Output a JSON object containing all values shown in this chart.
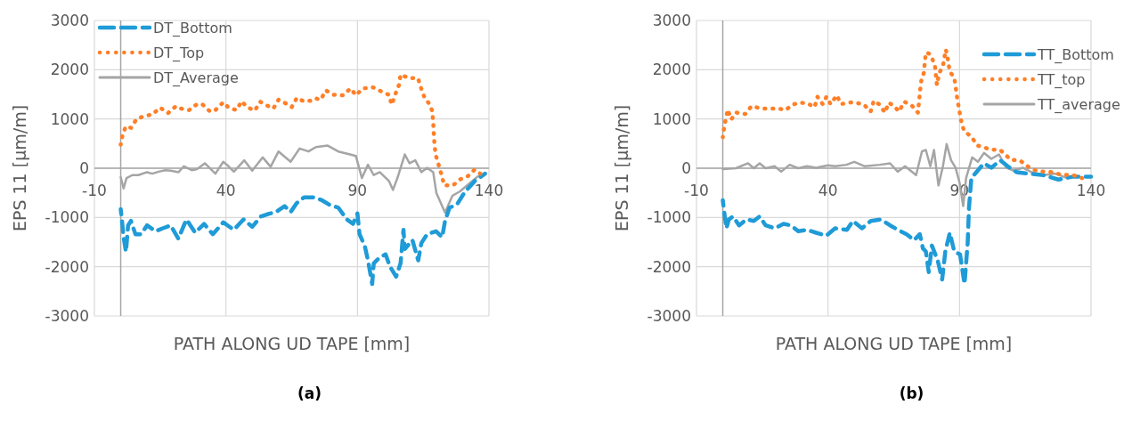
{
  "chart_data": [
    {
      "type": "line",
      "xlabel": "PATH ALONG UD TAPE [mm]",
      "ylabel": "EPS 11 [μm/m]",
      "xlim": [
        -10,
        140
      ],
      "xticks": [
        -10,
        40,
        90,
        140
      ],
      "ylim": [
        -3000,
        3000
      ],
      "yticks": [
        -3000,
        -2000,
        -1000,
        0,
        1000,
        2000,
        3000
      ],
      "grid": true,
      "legend": "top left",
      "annotations": [
        "(a)"
      ],
      "series": [
        {
          "name": "DT_Bottom",
          "color": "#1f9bd7",
          "line_style": "dashed",
          "x": [
            0,
            0.5,
            1.1,
            2,
            2.8,
            3.9,
            5.6,
            7.8,
            10,
            13.3,
            16,
            19,
            21.9,
            25,
            28.3,
            31.7,
            35,
            39,
            43,
            46.7,
            50,
            53.3,
            56.7,
            59,
            62.3,
            64.6,
            66.9,
            69.7,
            73.6,
            76.5,
            79.3,
            82.7,
            86,
            88.3,
            90,
            90.8,
            92.8,
            94,
            95.6,
            96.2,
            98.5,
            100.7,
            102.4,
            104.7,
            106.4,
            107.5,
            108,
            110.9,
            113.1,
            114.3,
            116.5,
            119.9,
            122.2,
            123.3,
            125,
            127.8,
            130.6,
            134.6,
            138.5
          ],
          "values": [
            -830,
            -1070,
            -1400,
            -1700,
            -1160,
            -1070,
            -1340,
            -1340,
            -1160,
            -1280,
            -1220,
            -1160,
            -1430,
            -1040,
            -1310,
            -1130,
            -1340,
            -1100,
            -1250,
            -1040,
            -1190,
            -980,
            -920,
            -890,
            -770,
            -890,
            -710,
            -590,
            -590,
            -650,
            -740,
            -800,
            -1040,
            -1130,
            -920,
            -1340,
            -1580,
            -1870,
            -2350,
            -1930,
            -1810,
            -1750,
            -2000,
            -2200,
            -1930,
            -1250,
            -1640,
            -1460,
            -1870,
            -1520,
            -1340,
            -1280,
            -1400,
            -1070,
            -800,
            -740,
            -500,
            -260,
            -110
          ]
        },
        {
          "name": "DT_Top",
          "color": "#ff7f27",
          "line_style": "dotted",
          "x": [
            0,
            0.8,
            2,
            4,
            6,
            9,
            12,
            15,
            18,
            21,
            23,
            26,
            29,
            31,
            34,
            36,
            39,
            41,
            44,
            46,
            48,
            51,
            53,
            55,
            58,
            60,
            63,
            65,
            67,
            69.5,
            72.5,
            74,
            76,
            78,
            81,
            84.5,
            87.4,
            89.4,
            92,
            96,
            99,
            102,
            103,
            104.3,
            105.8,
            106.4,
            109.5,
            113,
            114.3,
            115.6,
            117,
            118.4,
            118.8,
            119,
            119.3,
            119.7,
            120.8,
            122,
            123,
            126.3,
            128.9,
            132,
            134.5,
            136.7
          ],
          "values": [
            480,
            700,
            850,
            820,
            1000,
            1060,
            1090,
            1230,
            1120,
            1260,
            1210,
            1180,
            1300,
            1300,
            1150,
            1180,
            1340,
            1230,
            1180,
            1360,
            1240,
            1170,
            1350,
            1290,
            1210,
            1390,
            1310,
            1240,
            1430,
            1360,
            1370,
            1420,
            1390,
            1580,
            1490,
            1480,
            1620,
            1480,
            1620,
            1640,
            1560,
            1490,
            1290,
            1490,
            1690,
            1900,
            1830,
            1830,
            1610,
            1420,
            1330,
            1170,
            940,
            720,
            490,
            280,
            80,
            -140,
            -350,
            -350,
            -230,
            -160,
            -30,
            -110
          ]
        },
        {
          "name": "DT_Average",
          "color": "#a5a5a5",
          "line_style": "solid",
          "x": [
            0,
            1.1,
            2.2,
            4.4,
            6.7,
            10,
            12,
            14.4,
            17,
            19,
            22,
            24,
            27,
            29,
            32,
            36,
            39,
            41,
            43,
            47,
            50,
            54,
            57,
            60,
            64.6,
            68,
            71.4,
            74.2,
            78.7,
            82.7,
            87.2,
            89.4,
            91.7,
            94,
            96.2,
            98.5,
            102,
            103.5,
            105.2,
            108,
            109.8,
            112,
            114.3,
            116.5,
            118.8,
            120,
            123.3,
            126.1,
            129,
            132.3,
            135.7,
            138.5
          ],
          "values": [
            -180,
            -410,
            -200,
            -140,
            -140,
            -80,
            -110,
            -70,
            -40,
            -50,
            -80,
            40,
            -40,
            -20,
            100,
            -110,
            130,
            40,
            -70,
            160,
            -50,
            220,
            30,
            340,
            130,
            400,
            340,
            430,
            460,
            340,
            280,
            250,
            -200,
            70,
            -140,
            -80,
            -260,
            -440,
            -200,
            280,
            100,
            160,
            -80,
            10,
            -80,
            -500,
            -900,
            -560,
            -470,
            -320,
            -170,
            -110
          ]
        }
      ]
    },
    {
      "type": "line",
      "xlabel": "PATH ALONG UD TAPE [mm]",
      "ylabel": "EPS 11 [μm/m]",
      "xlim": [
        -10,
        140
      ],
      "xticks": [
        -10,
        40,
        90,
        140
      ],
      "ylim": [
        -3000,
        3000
      ],
      "yticks": [
        -3000,
        -2000,
        -1000,
        0,
        1000,
        2000,
        3000
      ],
      "grid": true,
      "legend": "top right",
      "annotations": [
        "(b)"
      ],
      "series": [
        {
          "name": "TT_Bottom",
          "color": "#1f9bd7",
          "line_style": "dashed",
          "x": [
            0,
            0.6,
            1.4,
            2.3,
            3.9,
            6.2,
            9,
            11.8,
            14,
            16.3,
            19.7,
            23.1,
            25.9,
            28.7,
            32,
            35.5,
            39.4,
            42.7,
            47.2,
            49.5,
            52.9,
            56.3,
            60.2,
            63.6,
            66.5,
            69.9,
            72.7,
            74.9,
            76.1,
            77.2,
            78.3,
            79.5,
            81.7,
            83.4,
            84.6,
            86.3,
            88,
            90.2,
            91.9,
            93.1,
            93.6,
            94.5,
            96.4,
            99.3,
            102.1,
            105.5,
            108.3,
            111.7,
            116.2,
            121.9,
            127.6,
            133.2,
            140
          ],
          "values": [
            -650,
            -920,
            -1220,
            -1040,
            -980,
            -1160,
            -1040,
            -1070,
            -980,
            -1160,
            -1220,
            -1130,
            -1160,
            -1280,
            -1250,
            -1310,
            -1370,
            -1220,
            -1250,
            -1070,
            -1220,
            -1070,
            -1040,
            -1160,
            -1250,
            -1340,
            -1460,
            -1340,
            -1630,
            -1690,
            -2110,
            -1570,
            -1870,
            -2260,
            -1690,
            -1310,
            -1690,
            -1750,
            -2350,
            -1520,
            -800,
            -200,
            -80,
            100,
            10,
            160,
            40,
            -80,
            -110,
            -140,
            -230,
            -170,
            -170
          ]
        },
        {
          "name": "TT_top",
          "color": "#ff7f27",
          "line_style": "dotted",
          "x": [
            0,
            0.6,
            1.4,
            1.9,
            3.2,
            5,
            8.5,
            10.9,
            14.9,
            18.4,
            21.4,
            23.9,
            26.5,
            29,
            32,
            34.9,
            36,
            38,
            39.4,
            41,
            43.3,
            45,
            47.2,
            50,
            53.7,
            56.2,
            57.4,
            59.4,
            61.7,
            63,
            65,
            67,
            69,
            71.9,
            74.2,
            75,
            75.5,
            76.4,
            77.2,
            78.7,
            80.6,
            81.4,
            82.3,
            83.7,
            84.8,
            85.5,
            86.3,
            88,
            88.5,
            89.1,
            90.6,
            91.7,
            94.5,
            96.8,
            99,
            101.5,
            105.5,
            109.5,
            112.9,
            117.4,
            120.8,
            124.2,
            128.7,
            133.2,
            136.6
          ],
          "values": [
            630,
            850,
            1070,
            1190,
            990,
            1130,
            1100,
            1260,
            1210,
            1210,
            1210,
            1180,
            1290,
            1330,
            1320,
            1240,
            1450,
            1300,
            1450,
            1300,
            1480,
            1300,
            1330,
            1340,
            1290,
            1150,
            1370,
            1300,
            1130,
            1330,
            1270,
            1150,
            1350,
            1270,
            1130,
            1570,
            1780,
            1930,
            2350,
            2320,
            2110,
            1690,
            1930,
            2080,
            2410,
            2230,
            1960,
            1840,
            1660,
            1420,
            970,
            760,
            640,
            460,
            430,
            380,
            370,
            170,
            160,
            -20,
            -70,
            -70,
            -130,
            -140,
            -200
          ]
        },
        {
          "name": "TT_average",
          "color": "#a5a5a5",
          "line_style": "solid",
          "x": [
            0,
            5,
            9.6,
            11.8,
            14,
            16.3,
            19.7,
            22.2,
            25.4,
            28.7,
            32,
            35.5,
            40,
            42.7,
            47,
            50,
            54,
            59.7,
            63.6,
            66.5,
            69.3,
            73.5,
            75.7,
            77.2,
            78.9,
            80.3,
            82,
            83.7,
            85.1,
            86.8,
            88.5,
            90,
            91.4,
            92.5,
            94.8,
            97,
            99.3,
            102.1,
            105,
            107.8,
            110.6,
            114,
            117.4,
            121.9,
            126.4,
            131
          ],
          "values": [
            -20,
            0,
            100,
            0,
            100,
            0,
            40,
            -70,
            70,
            0,
            40,
            10,
            60,
            40,
            70,
            130,
            40,
            70,
            100,
            -70,
            40,
            -140,
            340,
            370,
            40,
            370,
            -350,
            40,
            490,
            160,
            10,
            -290,
            -770,
            -200,
            220,
            130,
            310,
            190,
            280,
            10,
            -50,
            10,
            -80,
            -140,
            -110,
            -200
          ]
        }
      ]
    }
  ]
}
